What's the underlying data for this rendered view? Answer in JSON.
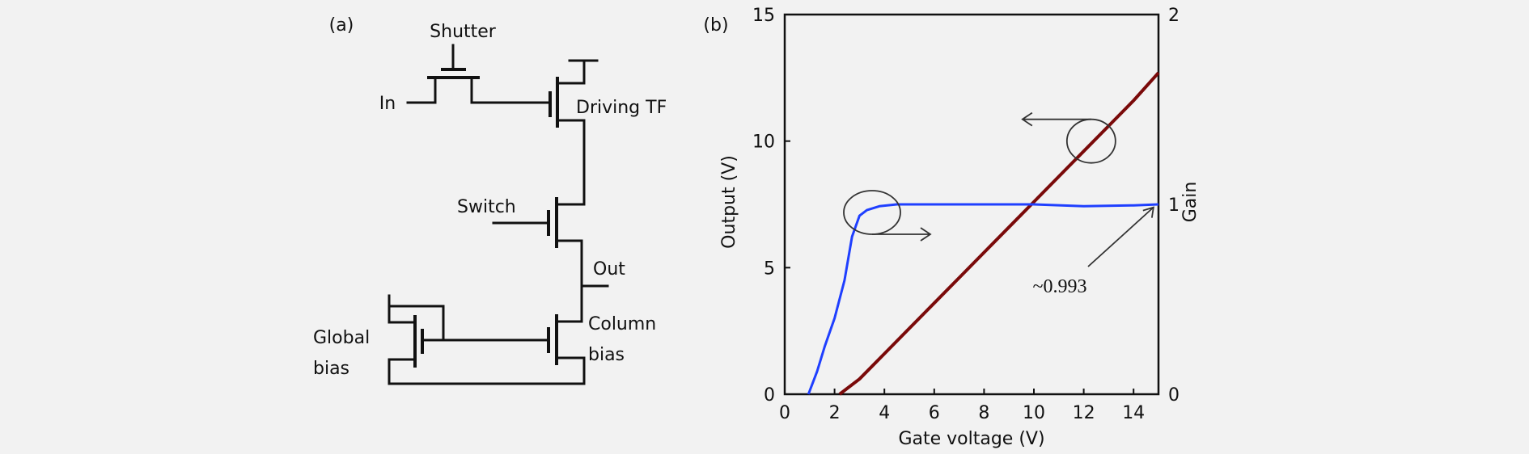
{
  "panel_a": {
    "label": "(a)",
    "shutter": "Shutter",
    "in": "In",
    "driving": "Driving TF",
    "switch": "Switch",
    "out": "Out",
    "global_line1": "Global",
    "global_line2": "bias",
    "column_line1": "Column",
    "column_line2": "bias"
  },
  "panel_b": {
    "label": "(b)"
  },
  "chart_data": {
    "type": "line",
    "title": "",
    "xlabel": "Gate voltage (V)",
    "ylabel": "Output (V)",
    "y2label": "Gain",
    "xlim": [
      0,
      15
    ],
    "ylim": [
      0,
      15
    ],
    "y2lim": [
      0,
      2
    ],
    "xticks": [
      0,
      2,
      4,
      6,
      8,
      10,
      12,
      14
    ],
    "yticks": [
      0,
      5,
      10,
      15
    ],
    "y2ticks": [
      0,
      1,
      2
    ],
    "grid": false,
    "series": [
      {
        "name": "Output",
        "axis": "left",
        "color": "#7a0a0a",
        "x": [
          2.2,
          3.0,
          4.0,
          5.0,
          6.0,
          7.0,
          8.0,
          9.0,
          10.0,
          11.0,
          12.0,
          13.0,
          14.0,
          15.0
        ],
        "y": [
          0.0,
          0.6,
          1.6,
          2.6,
          3.6,
          4.6,
          5.6,
          6.6,
          7.6,
          8.6,
          9.6,
          10.6,
          11.6,
          12.7
        ]
      },
      {
        "name": "Gain",
        "axis": "right",
        "color": "#1f3fff",
        "x": [
          0.95,
          1.3,
          1.6,
          2.0,
          2.4,
          2.7,
          3.0,
          3.3,
          3.8,
          4.5,
          6,
          8,
          10,
          12,
          14,
          15
        ],
        "y": [
          0.0,
          0.12,
          0.25,
          0.4,
          0.6,
          0.83,
          0.94,
          0.97,
          0.99,
          1.0,
          1.0,
          1.0,
          1.0,
          0.99,
          0.995,
          1.0
        ]
      }
    ],
    "annotations": [
      {
        "text": "~0.993",
        "target_x": 14.8,
        "target_gain": 0.993
      }
    ]
  }
}
